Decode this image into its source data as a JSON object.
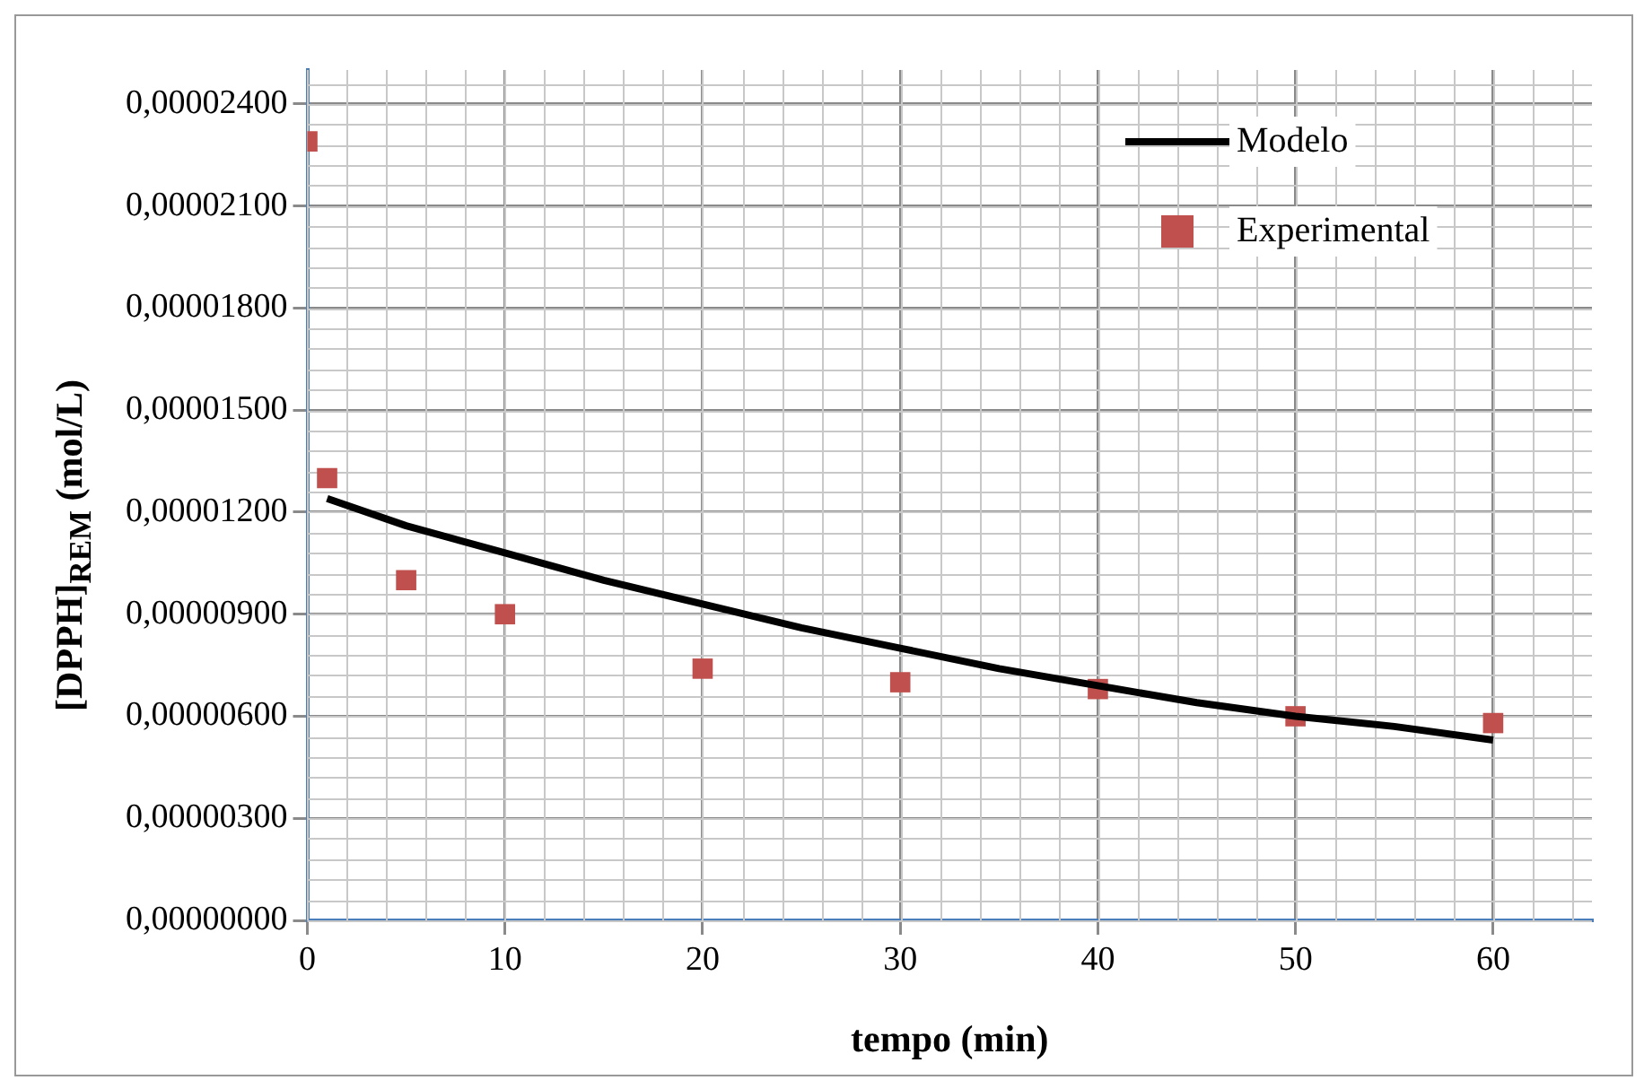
{
  "chart_data": {
    "type": "scatter",
    "xlabel": "tempo (min)",
    "ylabel": "[DPPH]$_{REM}$ (mol/L)",
    "xlim": [
      0,
      65
    ],
    "xticks": [
      0,
      10,
      20,
      30,
      40,
      50,
      60
    ],
    "ylim": [
      0,
      2.5e-05
    ],
    "yticks": [
      {
        "value": 0,
        "label": "0,00000000"
      },
      {
        "value": 3e-06,
        "label": "0,00000300"
      },
      {
        "value": 6e-06,
        "label": "0,00000600"
      },
      {
        "value": 9e-06,
        "label": "0,00000900"
      },
      {
        "value": 1.2e-05,
        "label": "0,00001200"
      },
      {
        "value": 1.5e-05,
        "label": "0,00001500"
      },
      {
        "value": 1.8e-05,
        "label": "0,00001800"
      },
      {
        "value": 2.1e-05,
        "label": "0,00002100"
      },
      {
        "value": 2.4e-05,
        "label": "0,00002400"
      }
    ],
    "grid": true,
    "legend": "top right",
    "series": [
      {
        "name": "Modelo",
        "type": "line",
        "color": "#000000",
        "marker": "none",
        "line_style": "solid",
        "x": [
          1,
          5,
          10,
          15,
          20,
          25,
          30,
          35,
          40,
          45,
          50,
          55,
          60
        ],
        "values": [
          1.24e-05,
          1.16e-05,
          1.08e-05,
          1e-05,
          9.3e-06,
          8.6e-06,
          8e-06,
          7.4e-06,
          6.9e-06,
          6.4e-06,
          6e-06,
          5.7e-06,
          5.3e-06
        ]
      },
      {
        "name": "Experimental",
        "type": "scatter",
        "color": "#c0504d",
        "marker": "square",
        "x": [
          0,
          1,
          5,
          10,
          20,
          30,
          40,
          50,
          60
        ],
        "values": [
          2.29e-05,
          1.3e-05,
          1e-05,
          9e-06,
          7.4e-06,
          7e-06,
          6.8e-06,
          6e-06,
          5.8e-06
        ]
      }
    ]
  }
}
